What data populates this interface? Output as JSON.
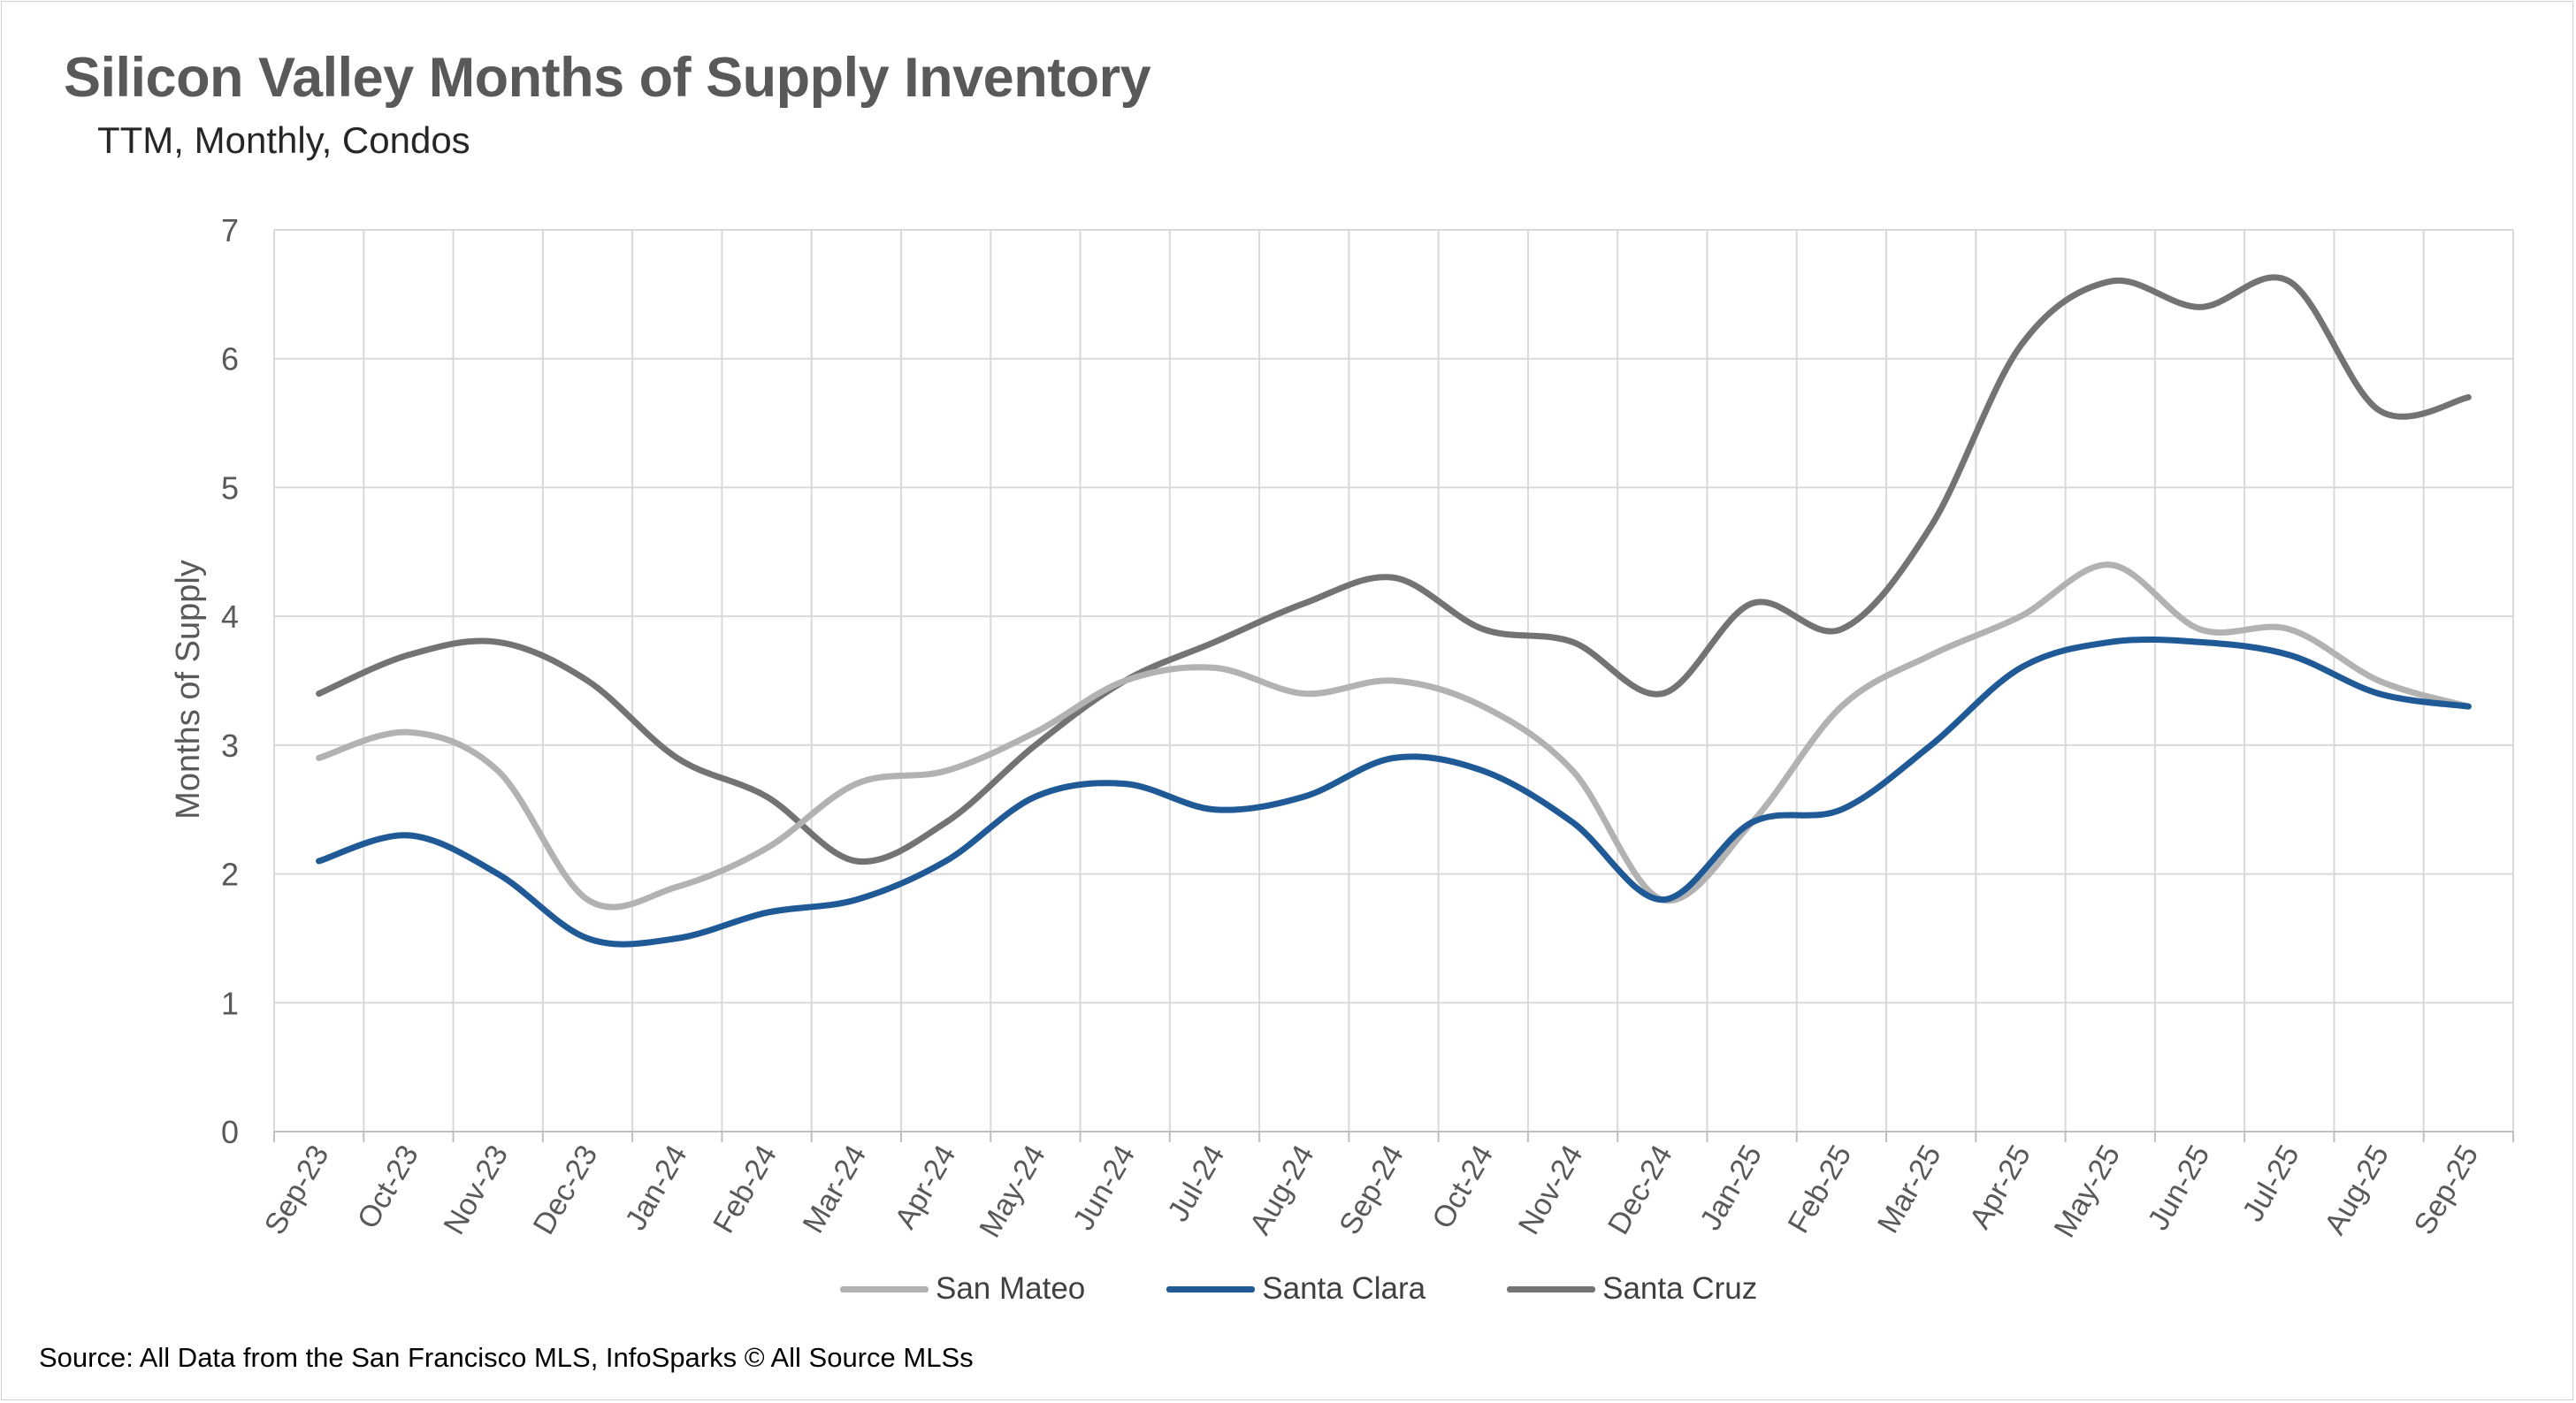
{
  "header": {
    "title": "Silicon Valley Months of Supply Inventory",
    "subtitle": "TTM, Monthly, Condos"
  },
  "footer": {
    "source": "Source: All Data from the San Francisco MLS, InfoSparks © All Source MLSs"
  },
  "chart_data": {
    "type": "line",
    "title": "Silicon Valley Months of Supply Inventory",
    "subtitle": "TTM, Monthly, Condos",
    "xlabel": "",
    "ylabel": "Months of Supply",
    "ylim": [
      0,
      7
    ],
    "yticks": [
      0,
      1,
      2,
      3,
      4,
      5,
      6,
      7
    ],
    "grid": true,
    "legend_position": "bottom",
    "categories": [
      "Sep-23",
      "Oct-23",
      "Nov-23",
      "Dec-23",
      "Jan-24",
      "Feb-24",
      "Mar-24",
      "Apr-24",
      "May-24",
      "Jun-24",
      "Jul-24",
      "Aug-24",
      "Sep-24",
      "Oct-24",
      "Nov-24",
      "Dec-24",
      "Jan-25",
      "Feb-25",
      "Mar-25",
      "Apr-25",
      "May-25",
      "Jun-25",
      "Jul-25",
      "Aug-25",
      "Sep-25"
    ],
    "series": [
      {
        "name": "San Mateo",
        "color": "#b2b2b2",
        "values": [
          2.9,
          3.1,
          2.8,
          1.8,
          1.9,
          2.2,
          2.7,
          2.8,
          3.1,
          3.5,
          3.6,
          3.4,
          3.5,
          3.3,
          2.8,
          1.8,
          2.4,
          3.3,
          3.7,
          4.0,
          4.4,
          3.9,
          3.9,
          3.5,
          3.3
        ]
      },
      {
        "name": "Santa Clara",
        "color": "#1f5a96",
        "values": [
          2.1,
          2.3,
          2.0,
          1.5,
          1.5,
          1.7,
          1.8,
          2.1,
          2.6,
          2.7,
          2.5,
          2.6,
          2.9,
          2.8,
          2.4,
          1.8,
          2.4,
          2.5,
          3.0,
          3.6,
          3.8,
          3.8,
          3.7,
          3.4,
          3.3
        ]
      },
      {
        "name": "Santa Cruz",
        "color": "#737373",
        "values": [
          3.4,
          3.7,
          3.8,
          3.5,
          2.9,
          2.6,
          2.1,
          2.4,
          3.0,
          3.5,
          3.8,
          4.1,
          4.3,
          3.9,
          3.8,
          3.4,
          4.1,
          3.9,
          4.7,
          6.1,
          6.6,
          6.4,
          6.6,
          5.6,
          5.7
        ]
      }
    ]
  }
}
